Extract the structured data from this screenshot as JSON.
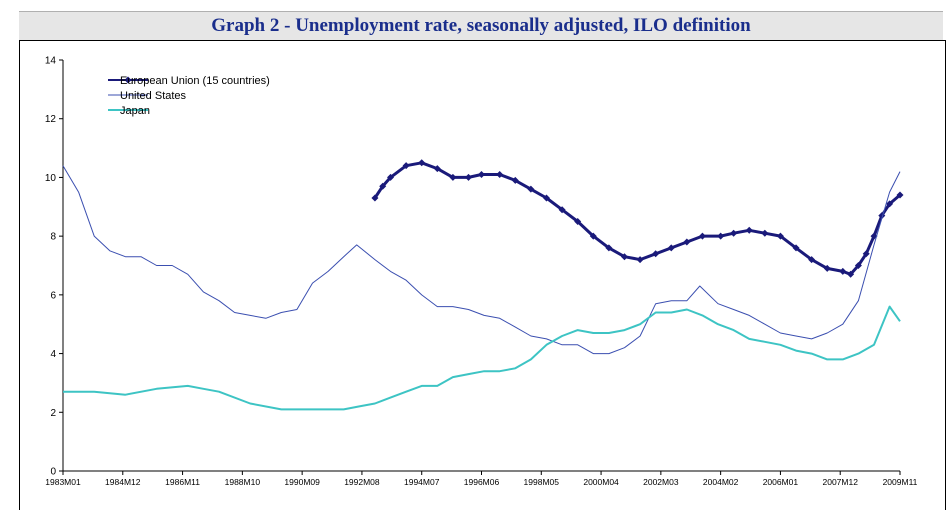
{
  "chart_data": {
    "type": "line",
    "title": "Graph 2 - Unemployment rate, seasonally adjusted, ILO definition",
    "xlabel": "",
    "ylabel": "",
    "ylim": [
      0,
      14
    ],
    "yticks": [
      0,
      2,
      4,
      6,
      8,
      10,
      12,
      14
    ],
    "x_ticks": [
      "1983M01",
      "1984M12",
      "1986M11",
      "1988M10",
      "1990M09",
      "1992M08",
      "1994M07",
      "1996M06",
      "1998M05",
      "2000M04",
      "2002M03",
      "2004M02",
      "2006M01",
      "2007M12",
      "2009M11"
    ],
    "x_range": [
      "1983M01",
      "2009M11"
    ],
    "grid": false,
    "legend_position": "top-left",
    "series": [
      {
        "name": "European Union (15 countries)",
        "color": "#1a1a7a",
        "marker": "diamond",
        "points": [
          [
            "1993M01",
            9.3
          ],
          [
            "1993M04",
            9.7
          ],
          [
            "1993M07",
            10.0
          ],
          [
            "1994M01",
            10.4
          ],
          [
            "1994M07",
            10.5
          ],
          [
            "1995M01",
            10.3
          ],
          [
            "1995M07",
            10.0
          ],
          [
            "1996M01",
            10.0
          ],
          [
            "1996M06",
            10.1
          ],
          [
            "1997M01",
            10.1
          ],
          [
            "1997M07",
            9.9
          ],
          [
            "1998M01",
            9.6
          ],
          [
            "1998M07",
            9.3
          ],
          [
            "1999M01",
            8.9
          ],
          [
            "1999M07",
            8.5
          ],
          [
            "2000M01",
            8.0
          ],
          [
            "2000M07",
            7.6
          ],
          [
            "2001M01",
            7.3
          ],
          [
            "2001M07",
            7.2
          ],
          [
            "2002M01",
            7.4
          ],
          [
            "2002M07",
            7.6
          ],
          [
            "2003M01",
            7.8
          ],
          [
            "2003M07",
            8.0
          ],
          [
            "2004M02",
            8.0
          ],
          [
            "2004M07",
            8.1
          ],
          [
            "2005M01",
            8.2
          ],
          [
            "2005M07",
            8.1
          ],
          [
            "2006M01",
            8.0
          ],
          [
            "2006M07",
            7.6
          ],
          [
            "2007M01",
            7.2
          ],
          [
            "2007M07",
            6.9
          ],
          [
            "2008M01",
            6.8
          ],
          [
            "2008M04",
            6.7
          ],
          [
            "2008M07",
            7.0
          ],
          [
            "2008M10",
            7.4
          ],
          [
            "2009M01",
            8.0
          ],
          [
            "2009M04",
            8.7
          ],
          [
            "2009M07",
            9.1
          ],
          [
            "2009M11",
            9.4
          ]
        ]
      },
      {
        "name": "United States",
        "color": "#3b4fb0",
        "marker": "none",
        "points": [
          [
            "1983M01",
            10.4
          ],
          [
            "1983M07",
            9.5
          ],
          [
            "1984M01",
            8.0
          ],
          [
            "1984M07",
            7.5
          ],
          [
            "1985M01",
            7.3
          ],
          [
            "1985M07",
            7.3
          ],
          [
            "1986M01",
            7.0
          ],
          [
            "1986M07",
            7.0
          ],
          [
            "1987M01",
            6.7
          ],
          [
            "1987M07",
            6.1
          ],
          [
            "1988M01",
            5.8
          ],
          [
            "1988M07",
            5.4
          ],
          [
            "1989M01",
            5.3
          ],
          [
            "1989M07",
            5.2
          ],
          [
            "1990M01",
            5.4
          ],
          [
            "1990M07",
            5.5
          ],
          [
            "1991M01",
            6.4
          ],
          [
            "1991M07",
            6.8
          ],
          [
            "1992M01",
            7.3
          ],
          [
            "1992M06",
            7.7
          ],
          [
            "1993M01",
            7.2
          ],
          [
            "1993M07",
            6.8
          ],
          [
            "1994M01",
            6.5
          ],
          [
            "1994M07",
            6.0
          ],
          [
            "1995M01",
            5.6
          ],
          [
            "1995M07",
            5.6
          ],
          [
            "1996M01",
            5.5
          ],
          [
            "1996M07",
            5.3
          ],
          [
            "1997M01",
            5.2
          ],
          [
            "1997M07",
            4.9
          ],
          [
            "1998M01",
            4.6
          ],
          [
            "1998M07",
            4.5
          ],
          [
            "1999M01",
            4.3
          ],
          [
            "1999M07",
            4.3
          ],
          [
            "2000M01",
            4.0
          ],
          [
            "2000M07",
            4.0
          ],
          [
            "2001M01",
            4.2
          ],
          [
            "2001M07",
            4.6
          ],
          [
            "2002M01",
            5.7
          ],
          [
            "2002M07",
            5.8
          ],
          [
            "2003M01",
            5.8
          ],
          [
            "2003M06",
            6.3
          ],
          [
            "2004M01",
            5.7
          ],
          [
            "2004M07",
            5.5
          ],
          [
            "2005M01",
            5.3
          ],
          [
            "2005M07",
            5.0
          ],
          [
            "2006M01",
            4.7
          ],
          [
            "2006M07",
            4.6
          ],
          [
            "2007M01",
            4.5
          ],
          [
            "2007M07",
            4.7
          ],
          [
            "2008M01",
            5.0
          ],
          [
            "2008M07",
            5.8
          ],
          [
            "2009M01",
            7.7
          ],
          [
            "2009M07",
            9.5
          ],
          [
            "2009M11",
            10.2
          ]
        ]
      },
      {
        "name": "Japan",
        "color": "#3dc4c4",
        "marker": "none",
        "points": [
          [
            "1983M01",
            2.7
          ],
          [
            "1984M01",
            2.7
          ],
          [
            "1985M01",
            2.6
          ],
          [
            "1986M01",
            2.8
          ],
          [
            "1987M01",
            2.9
          ],
          [
            "1987M07",
            2.8
          ],
          [
            "1988M01",
            2.7
          ],
          [
            "1989M01",
            2.3
          ],
          [
            "1990M01",
            2.1
          ],
          [
            "1991M01",
            2.1
          ],
          [
            "1992M01",
            2.1
          ],
          [
            "1992M07",
            2.2
          ],
          [
            "1993M01",
            2.3
          ],
          [
            "1993M07",
            2.5
          ],
          [
            "1994M01",
            2.7
          ],
          [
            "1994M07",
            2.9
          ],
          [
            "1995M01",
            2.9
          ],
          [
            "1995M07",
            3.2
          ],
          [
            "1996M01",
            3.3
          ],
          [
            "1996M07",
            3.4
          ],
          [
            "1997M01",
            3.4
          ],
          [
            "1997M07",
            3.5
          ],
          [
            "1998M01",
            3.8
          ],
          [
            "1998M07",
            4.3
          ],
          [
            "1999M01",
            4.6
          ],
          [
            "1999M07",
            4.8
          ],
          [
            "2000M01",
            4.7
          ],
          [
            "2000M07",
            4.7
          ],
          [
            "2001M01",
            4.8
          ],
          [
            "2001M07",
            5.0
          ],
          [
            "2002M01",
            5.4
          ],
          [
            "2002M07",
            5.4
          ],
          [
            "2003M01",
            5.5
          ],
          [
            "2003M07",
            5.3
          ],
          [
            "2004M01",
            5.0
          ],
          [
            "2004M07",
            4.8
          ],
          [
            "2005M01",
            4.5
          ],
          [
            "2005M07",
            4.4
          ],
          [
            "2006M01",
            4.3
          ],
          [
            "2006M07",
            4.1
          ],
          [
            "2007M01",
            4.0
          ],
          [
            "2007M07",
            3.8
          ],
          [
            "2008M01",
            3.8
          ],
          [
            "2008M07",
            4.0
          ],
          [
            "2009M01",
            4.3
          ],
          [
            "2009M07",
            5.6
          ],
          [
            "2009M11",
            5.1
          ]
        ]
      }
    ]
  }
}
